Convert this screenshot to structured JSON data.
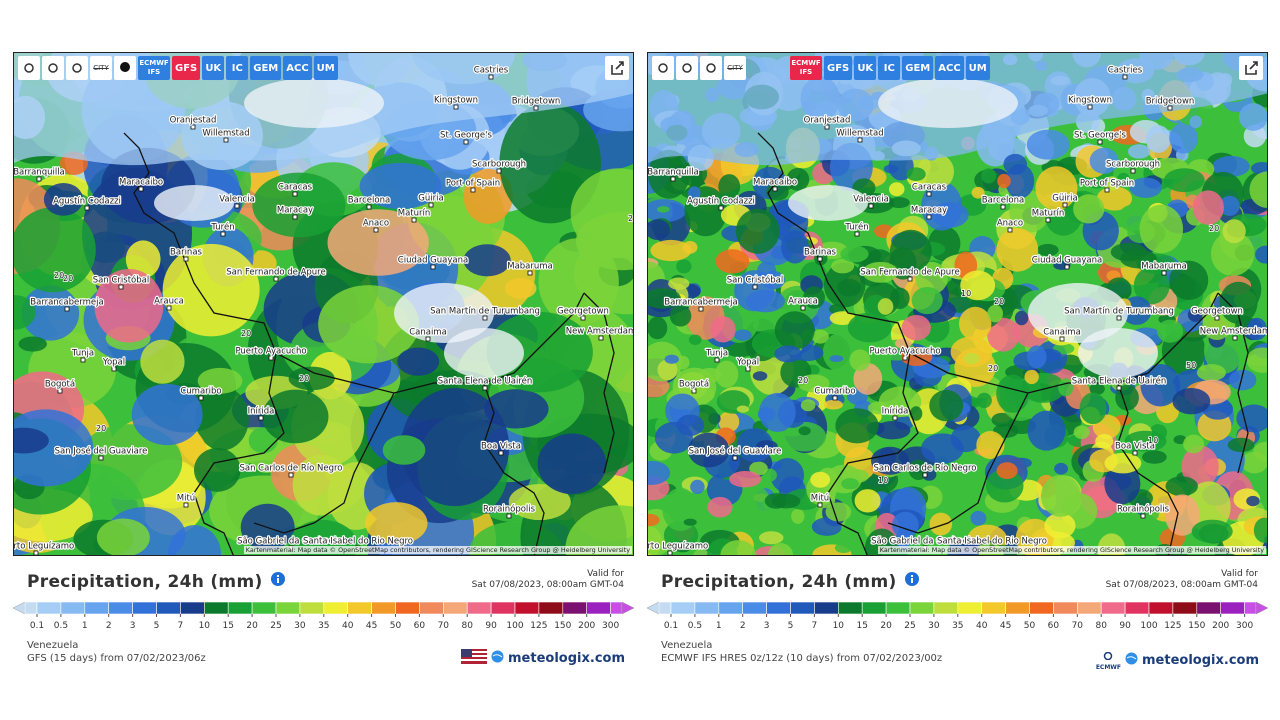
{
  "cities": [
    "Castries",
    "Kingstown",
    "Bridgetown",
    "Oranjestad",
    "Willemstad",
    "St. George's",
    "Scarborough",
    "Barranquilla",
    "Port of Spain",
    "Maracaibo",
    "Agustín Codazzi",
    "Caracas",
    "Valencia",
    "Barcelona",
    "Güiria",
    "Maracay",
    "Maturín",
    "Anaco",
    "Turén",
    "Barinas",
    "Ciudad Guayana",
    "San Fernando de Apure",
    "San Cristóbal",
    "Mabaruma",
    "Barrancabermeja",
    "Arauca",
    "San Martín de Turumbang",
    "Georgetown",
    "Canaima",
    "New Amsterdam",
    "Puerto Ayacucho",
    "Tunja",
    "Yopal",
    "Bogotá",
    "Cumaribo",
    "Santa Elena de Uairén",
    "Inírida",
    "San José del Guaviare",
    "Boa Vista",
    "San Carlos de Río Negro",
    "Mitú",
    "Rorainópolis",
    "São Gabriel da Cachoeira",
    "Santa Isabel do Rio Negro",
    "Puerto Leguízamo"
  ],
  "toolbar": {
    "city": "CITY",
    "models": [
      "ECMWF IFS",
      "GFS",
      "UK",
      "IC",
      "GEM",
      "ACC",
      "UM"
    ]
  },
  "attribution": "Kartenmaterial: Map data © OpenStreetMap contributors, rendering GIScience Research Group @ Heidelberg University",
  "title": "Precipitation, 24h (mm)",
  "valid_label": "Valid for",
  "valid_time": "Sat 07/08/2023, 08:00am GMT-04",
  "region": "Venezuela",
  "brand": "meteologix.com",
  "scale": {
    "labels": [
      0.1,
      0.5,
      1,
      2,
      3,
      5,
      7,
      10,
      15,
      20,
      25,
      30,
      35,
      40,
      45,
      50,
      60,
      70,
      80,
      90,
      100,
      125,
      150,
      200,
      300
    ],
    "colors": [
      "#c4dcf2",
      "#a6cdf6",
      "#86baf2",
      "#66a4ee",
      "#4a8ce6",
      "#3272d8",
      "#2058bc",
      "#183c8c",
      "#0c7a2c",
      "#18a034",
      "#3cc03c",
      "#7ad43a",
      "#bede3e",
      "#f0ee32",
      "#f2c82a",
      "#f29a28",
      "#f06820",
      "#f08a5c",
      "#f4a878",
      "#f06a8a",
      "#e03460",
      "#c0102e",
      "#8e0c18",
      "#7a1070",
      "#9a20c0",
      "#c84ee6",
      "#e68cf0",
      "#f2c4f2",
      "#f8e6f8",
      "#d0d0d0"
    ]
  },
  "panels": [
    {
      "active_model": "GFS",
      "source": "GFS (15 days) from 07/02/2023/06z",
      "map_labels": [
        20,
        20,
        20,
        20,
        20,
        20
      ]
    },
    {
      "active_model": "ECMWF IFS",
      "source": "ECMWF IFS HRES 0z/12z (10 days) from 07/02/2023/00z",
      "logo": "ECMWF",
      "map_labels": [
        20,
        20,
        20,
        50,
        10,
        10,
        20,
        10
      ]
    }
  ]
}
